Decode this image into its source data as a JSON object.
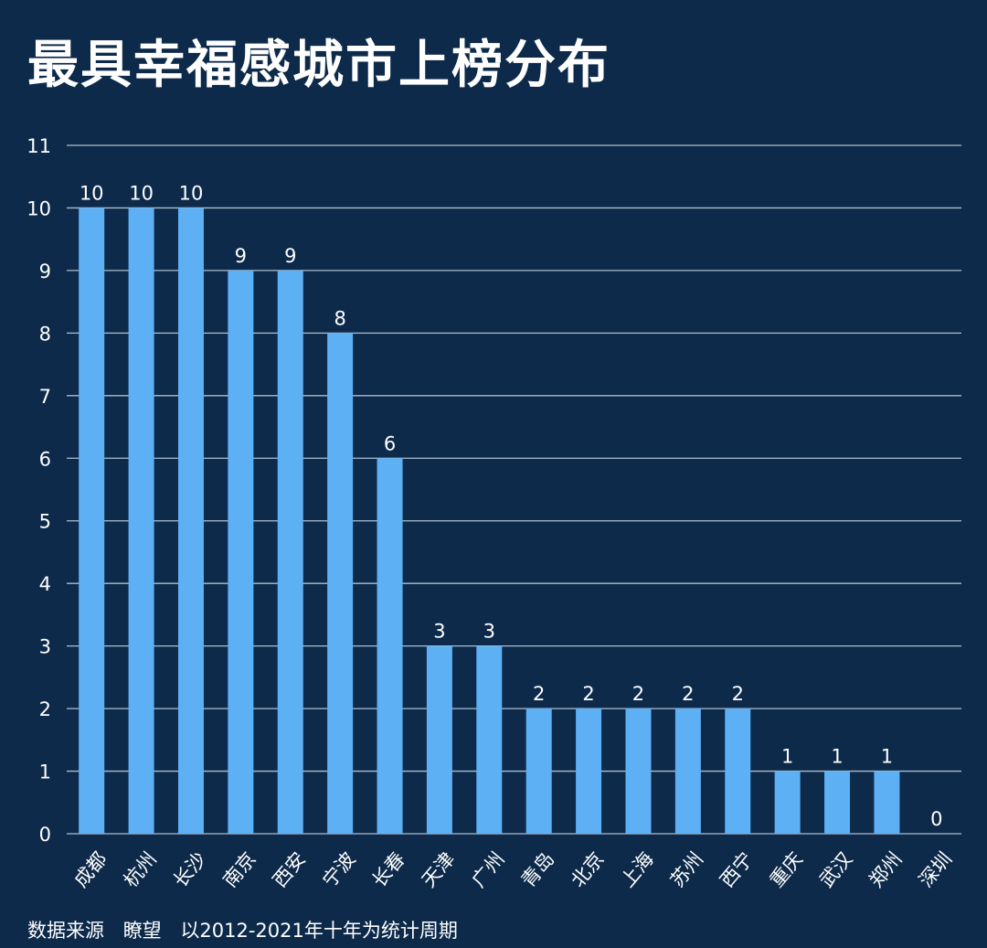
{
  "header": {
    "title": "最具幸福感城市上榜分布"
  },
  "footer": {
    "source_label": "数据来源",
    "source_name": "瞭望",
    "note": "以2012-2021年十年为统计周期"
  },
  "colors": {
    "background": "#0d2a4a",
    "bar": "#5eb0f5",
    "grid": "#c9d8e8",
    "text": "#ffffff"
  },
  "chart_data": {
    "type": "bar",
    "title": "最具幸福感城市上榜分布",
    "xlabel": "",
    "ylabel": "",
    "ylim": [
      0,
      11
    ],
    "yticks": [
      0,
      1,
      2,
      3,
      4,
      5,
      6,
      7,
      8,
      9,
      10,
      11
    ],
    "grid": true,
    "legend": "none",
    "categories": [
      "成都",
      "杭州",
      "长沙",
      "南京",
      "西安",
      "宁波",
      "长春",
      "天津",
      "广州",
      "青岛",
      "北京",
      "上海",
      "苏州",
      "西宁",
      "重庆",
      "武汉",
      "郑州",
      "深圳"
    ],
    "values": [
      10,
      10,
      10,
      9,
      9,
      8,
      6,
      3,
      3,
      2,
      2,
      2,
      2,
      2,
      1,
      1,
      1,
      0
    ],
    "data_labels": true
  }
}
